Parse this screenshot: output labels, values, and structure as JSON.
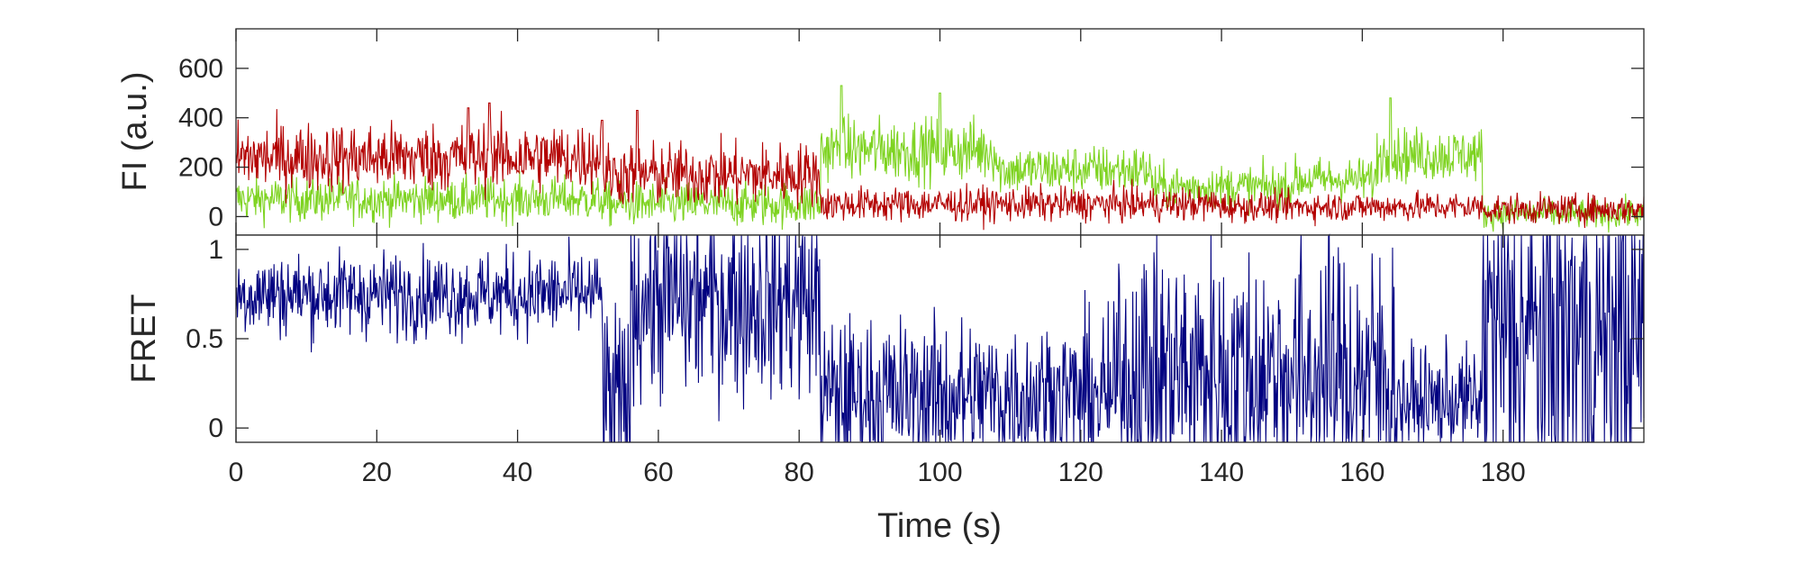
{
  "chart_data": [
    {
      "type": "line",
      "panel": "top",
      "ylabel": "FI (a.u.)",
      "xlim": [
        0,
        200
      ],
      "ylim": [
        -75,
        760
      ],
      "yticks": [
        0,
        200,
        400,
        600
      ],
      "yticklabels": [
        "0",
        "200",
        "400",
        "600"
      ],
      "colors": {
        "donor": "#7ed321",
        "acceptor": "#b30000"
      },
      "series": [
        {
          "key": "donor",
          "color": "#7ed321",
          "segments": [
            {
              "t": [
                0,
                52
              ],
              "mean": 70,
              "noise": 45
            },
            {
              "t": [
                52,
                83
              ],
              "mean": 50,
              "noise": 45
            },
            {
              "t": [
                83,
                108
              ],
              "mean": 270,
              "noise": 65
            },
            {
              "t": [
                108,
                130
              ],
              "mean": 190,
              "noise": 50
            },
            {
              "t": [
                130,
                150
              ],
              "mean": 120,
              "noise": 45
            },
            {
              "t": [
                150,
                162
              ],
              "mean": 150,
              "noise": 45
            },
            {
              "t": [
                162,
                177
              ],
              "mean": 250,
              "noise": 55
            },
            {
              "t": [
                177,
                200
              ],
              "mean": 10,
              "noise": 30
            }
          ],
          "peaks": [
            [
              86,
              530
            ],
            [
              100,
              500
            ],
            [
              164,
              480
            ]
          ]
        },
        {
          "key": "acceptor",
          "color": "#b30000",
          "segments": [
            {
              "t": [
                0,
                52
              ],
              "mean": 240,
              "noise": 70
            },
            {
              "t": [
                52,
                83
              ],
              "mean": 170,
              "noise": 65
            },
            {
              "t": [
                83,
                140
              ],
              "mean": 50,
              "noise": 35
            },
            {
              "t": [
                140,
                177
              ],
              "mean": 40,
              "noise": 30
            },
            {
              "t": [
                177,
                200
              ],
              "mean": 30,
              "noise": 30
            }
          ],
          "peaks": [
            [
              36,
              460
            ],
            [
              52,
              390
            ],
            [
              57,
              430
            ],
            [
              33,
              440
            ]
          ]
        }
      ]
    },
    {
      "type": "line",
      "panel": "bottom",
      "xlabel": "Time (s)",
      "ylabel": "FRET",
      "xlim": [
        0,
        200
      ],
      "ylim": [
        -0.08,
        1.08
      ],
      "xticks": [
        0,
        20,
        40,
        60,
        80,
        100,
        120,
        140,
        160,
        180
      ],
      "xticklabels": [
        "0",
        "20",
        "40",
        "60",
        "80",
        "100",
        "120",
        "140",
        "160",
        "180"
      ],
      "yticks": [
        0,
        0.5,
        1
      ],
      "yticklabels": [
        "0",
        "0.5",
        "1"
      ],
      "colors": {
        "fret": "#000080"
      },
      "series": [
        {
          "key": "fret",
          "color": "#000080",
          "segments": [
            {
              "t": [
                0,
                52
              ],
              "mean": 0.75,
              "noise": 0.12
            },
            {
              "t": [
                52,
                56
              ],
              "mean": 0.1,
              "noise": 0.3
            },
            {
              "t": [
                56,
                83
              ],
              "mean": 0.72,
              "noise": 0.28
            },
            {
              "t": [
                83,
                125
              ],
              "mean": 0.18,
              "noise": 0.22
            },
            {
              "t": [
                125,
                165
              ],
              "mean": 0.3,
              "noise": 0.38
            },
            {
              "t": [
                165,
                177
              ],
              "mean": 0.15,
              "noise": 0.15
            },
            {
              "t": [
                177,
                200
              ],
              "mean": 0.5,
              "noise": 0.55
            }
          ]
        }
      ]
    }
  ]
}
